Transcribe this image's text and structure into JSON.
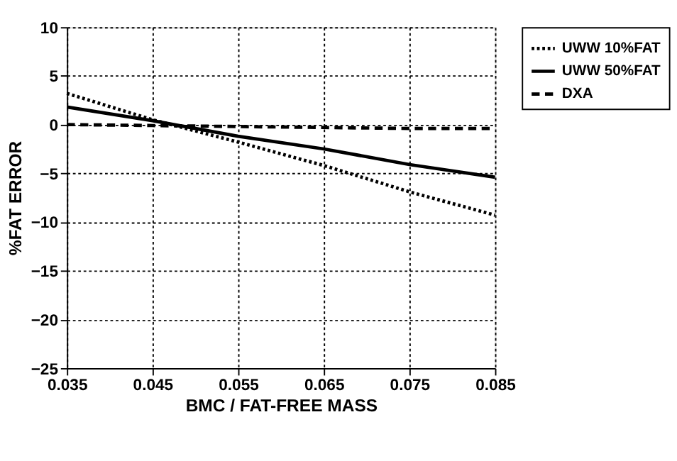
{
  "chart_data": {
    "type": "line",
    "xlabel": "BMC / FAT-FREE MASS",
    "ylabel": "%FAT ERROR",
    "x": [
      0.035,
      0.045,
      0.055,
      0.065,
      0.075,
      0.085
    ],
    "series": [
      {
        "name": "UWW 10%FAT",
        "color": "#000000",
        "line_style": "dotted",
        "values": [
          3.2,
          0.5,
          -1.8,
          -4.2,
          -6.9,
          -9.3
        ]
      },
      {
        "name": "UWW 50%FAT",
        "color": "#000000",
        "line_style": "solid",
        "values": [
          1.8,
          0.4,
          -1.2,
          -2.5,
          -4.1,
          -5.4
        ]
      },
      {
        "name": "DXA",
        "color": "#000000",
        "line_style": "dashed",
        "values": [
          0,
          -0.1,
          -0.2,
          -0.3,
          -0.4,
          -0.4
        ]
      }
    ],
    "xlim": [
      0.035,
      0.085
    ],
    "xticks": [
      0.035,
      0.045,
      0.055,
      0.065,
      0.075,
      0.085
    ],
    "ylim": [
      -25,
      10
    ],
    "yticks": [
      -25,
      -20,
      -15,
      -10,
      -5,
      0,
      5,
      10
    ],
    "grid": true,
    "legend": "top right",
    "marker": "none"
  }
}
